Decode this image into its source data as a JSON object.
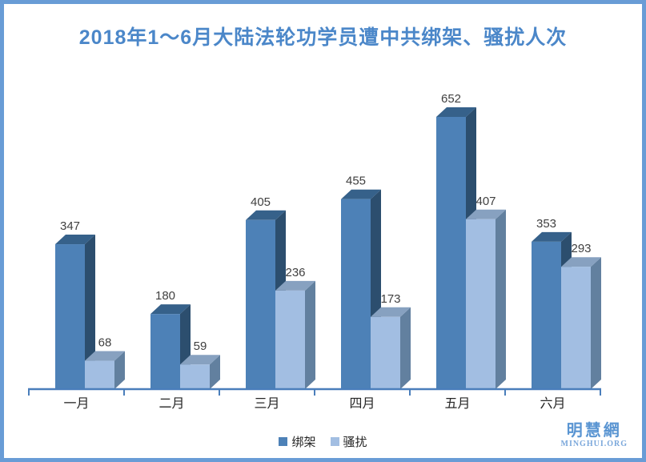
{
  "title": "2018年1～6月大陆法轮功学员遭中共绑架、骚扰人次",
  "chart_data": {
    "type": "bar",
    "style": "3d-cuboid",
    "title": "2018年1～6月大陆法轮功学员遭中共绑架、骚扰人次",
    "categories": [
      "一月",
      "二月",
      "三月",
      "四月",
      "五月",
      "六月"
    ],
    "series": [
      {
        "name": "绑架",
        "values": [
          347,
          180,
          405,
          455,
          652,
          353
        ],
        "front_color": "#4d81b7",
        "top_color": "#36618a",
        "side_color": "#2c4e6e"
      },
      {
        "name": "骚扰",
        "values": [
          68,
          59,
          236,
          173,
          407,
          293
        ],
        "front_color": "#a2bee2",
        "top_color": "#87a1c0",
        "side_color": "#62809f"
      }
    ],
    "value_labels_shown": true,
    "y_axis_shown": false,
    "grid": false,
    "legend_position": "bottom",
    "axis_color": "#4a7ebb",
    "value_label_color": "#404040",
    "category_label_color": "#262626"
  },
  "legend": {
    "items": [
      {
        "label": "绑架",
        "color": "#4d81b7"
      },
      {
        "label": "骚扰",
        "color": "#a2bee2"
      }
    ]
  },
  "branding": {
    "site_name": "明慧網",
    "site_url": "MINGHUI.ORG"
  },
  "colors": {
    "page_border": "#699cd6",
    "title": "#4b87c9"
  }
}
